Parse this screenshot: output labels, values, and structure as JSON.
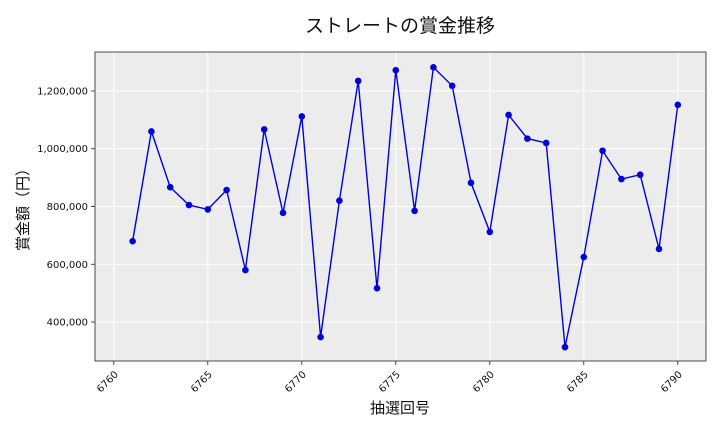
{
  "chart_data": {
    "type": "line",
    "title": "ストレートの賞金推移",
    "xlabel": "抽選回号",
    "ylabel": "賞金額（円）",
    "xlim": [
      6759.0,
      6791.5
    ],
    "ylim": [
      265000,
      1335000
    ],
    "x_ticks": [
      6760,
      6765,
      6770,
      6775,
      6780,
      6785,
      6790
    ],
    "y_ticks": [
      400000,
      600000,
      800000,
      1000000,
      1200000
    ],
    "y_tick_labels": [
      "400,000",
      "600,000",
      "800,000",
      "1,000,000",
      "1,200,000"
    ],
    "grid": true,
    "series": [
      {
        "color": "#0000dd",
        "x": [
          6761,
          6762,
          6763,
          6764,
          6765,
          6766,
          6767,
          6768,
          6769,
          6770,
          6771,
          6772,
          6773,
          6774,
          6775,
          6776,
          6777,
          6778,
          6779,
          6780,
          6781,
          6782,
          6783,
          6784,
          6785,
          6786,
          6787,
          6788,
          6789,
          6790
        ],
        "values": [
          680000,
          1060000,
          867000,
          805000,
          790000,
          857000,
          580000,
          1067000,
          778000,
          1112000,
          348000,
          820000,
          1235000,
          517000,
          1272000,
          785000,
          1282000,
          1218000,
          882000,
          712000,
          1117000,
          1035000,
          1020000,
          313000,
          625000,
          993000,
          895000,
          910000,
          653000,
          1152000
        ]
      }
    ]
  }
}
